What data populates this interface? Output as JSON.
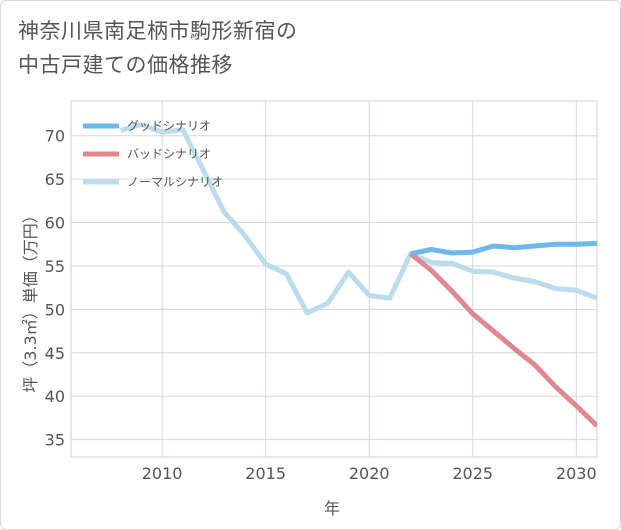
{
  "title_line1": "神奈川県南足柄市駒形新宿の",
  "title_line2": "中古戸建ての価格推移",
  "chart_data": {
    "type": "line",
    "xlabel": "年",
    "ylabel": "坪（3.3㎡）単価（万円）",
    "xlim": [
      2005.6,
      2031.0
    ],
    "ylim": [
      33.0,
      74.0
    ],
    "xticks": [
      2010,
      2015,
      2020,
      2025,
      2030
    ],
    "yticks": [
      35,
      40,
      45,
      50,
      55,
      60,
      65,
      70
    ],
    "grid": true,
    "legend_position": "top-left",
    "series": [
      {
        "name": "グッドシナリオ",
        "color": "#6db8ec",
        "x": [
          2022,
          2023,
          2024,
          2025,
          2026,
          2027,
          2028,
          2029,
          2030,
          2031
        ],
        "y": [
          56.4,
          56.9,
          56.5,
          56.6,
          57.3,
          57.1,
          57.3,
          57.5,
          57.5,
          57.6
        ]
      },
      {
        "name": "バッドシナリオ",
        "color": "#de8890",
        "x": [
          2022,
          2023,
          2024,
          2025,
          2026,
          2027,
          2028,
          2029,
          2030,
          2031
        ],
        "y": [
          56.4,
          54.5,
          52.1,
          49.5,
          47.5,
          45.5,
          43.6,
          41.1,
          38.9,
          36.6
        ]
      },
      {
        "name": "ノーマルシナリオ",
        "color": "#bcdceb",
        "x": [
          2008,
          2009,
          2010,
          2011,
          2012,
          2013,
          2014,
          2015,
          2016,
          2017,
          2018,
          2019,
          2020,
          2021,
          2022,
          2023,
          2024,
          2025,
          2026,
          2027,
          2028,
          2029,
          2030,
          2031
        ],
        "y": [
          70.6,
          71.3,
          70.4,
          70.7,
          66.0,
          61.2,
          58.5,
          55.2,
          54.1,
          49.6,
          50.7,
          54.3,
          51.6,
          51.3,
          56.4,
          55.4,
          55.3,
          54.4,
          54.3,
          53.6,
          53.2,
          52.4,
          52.2,
          51.3
        ]
      }
    ]
  }
}
